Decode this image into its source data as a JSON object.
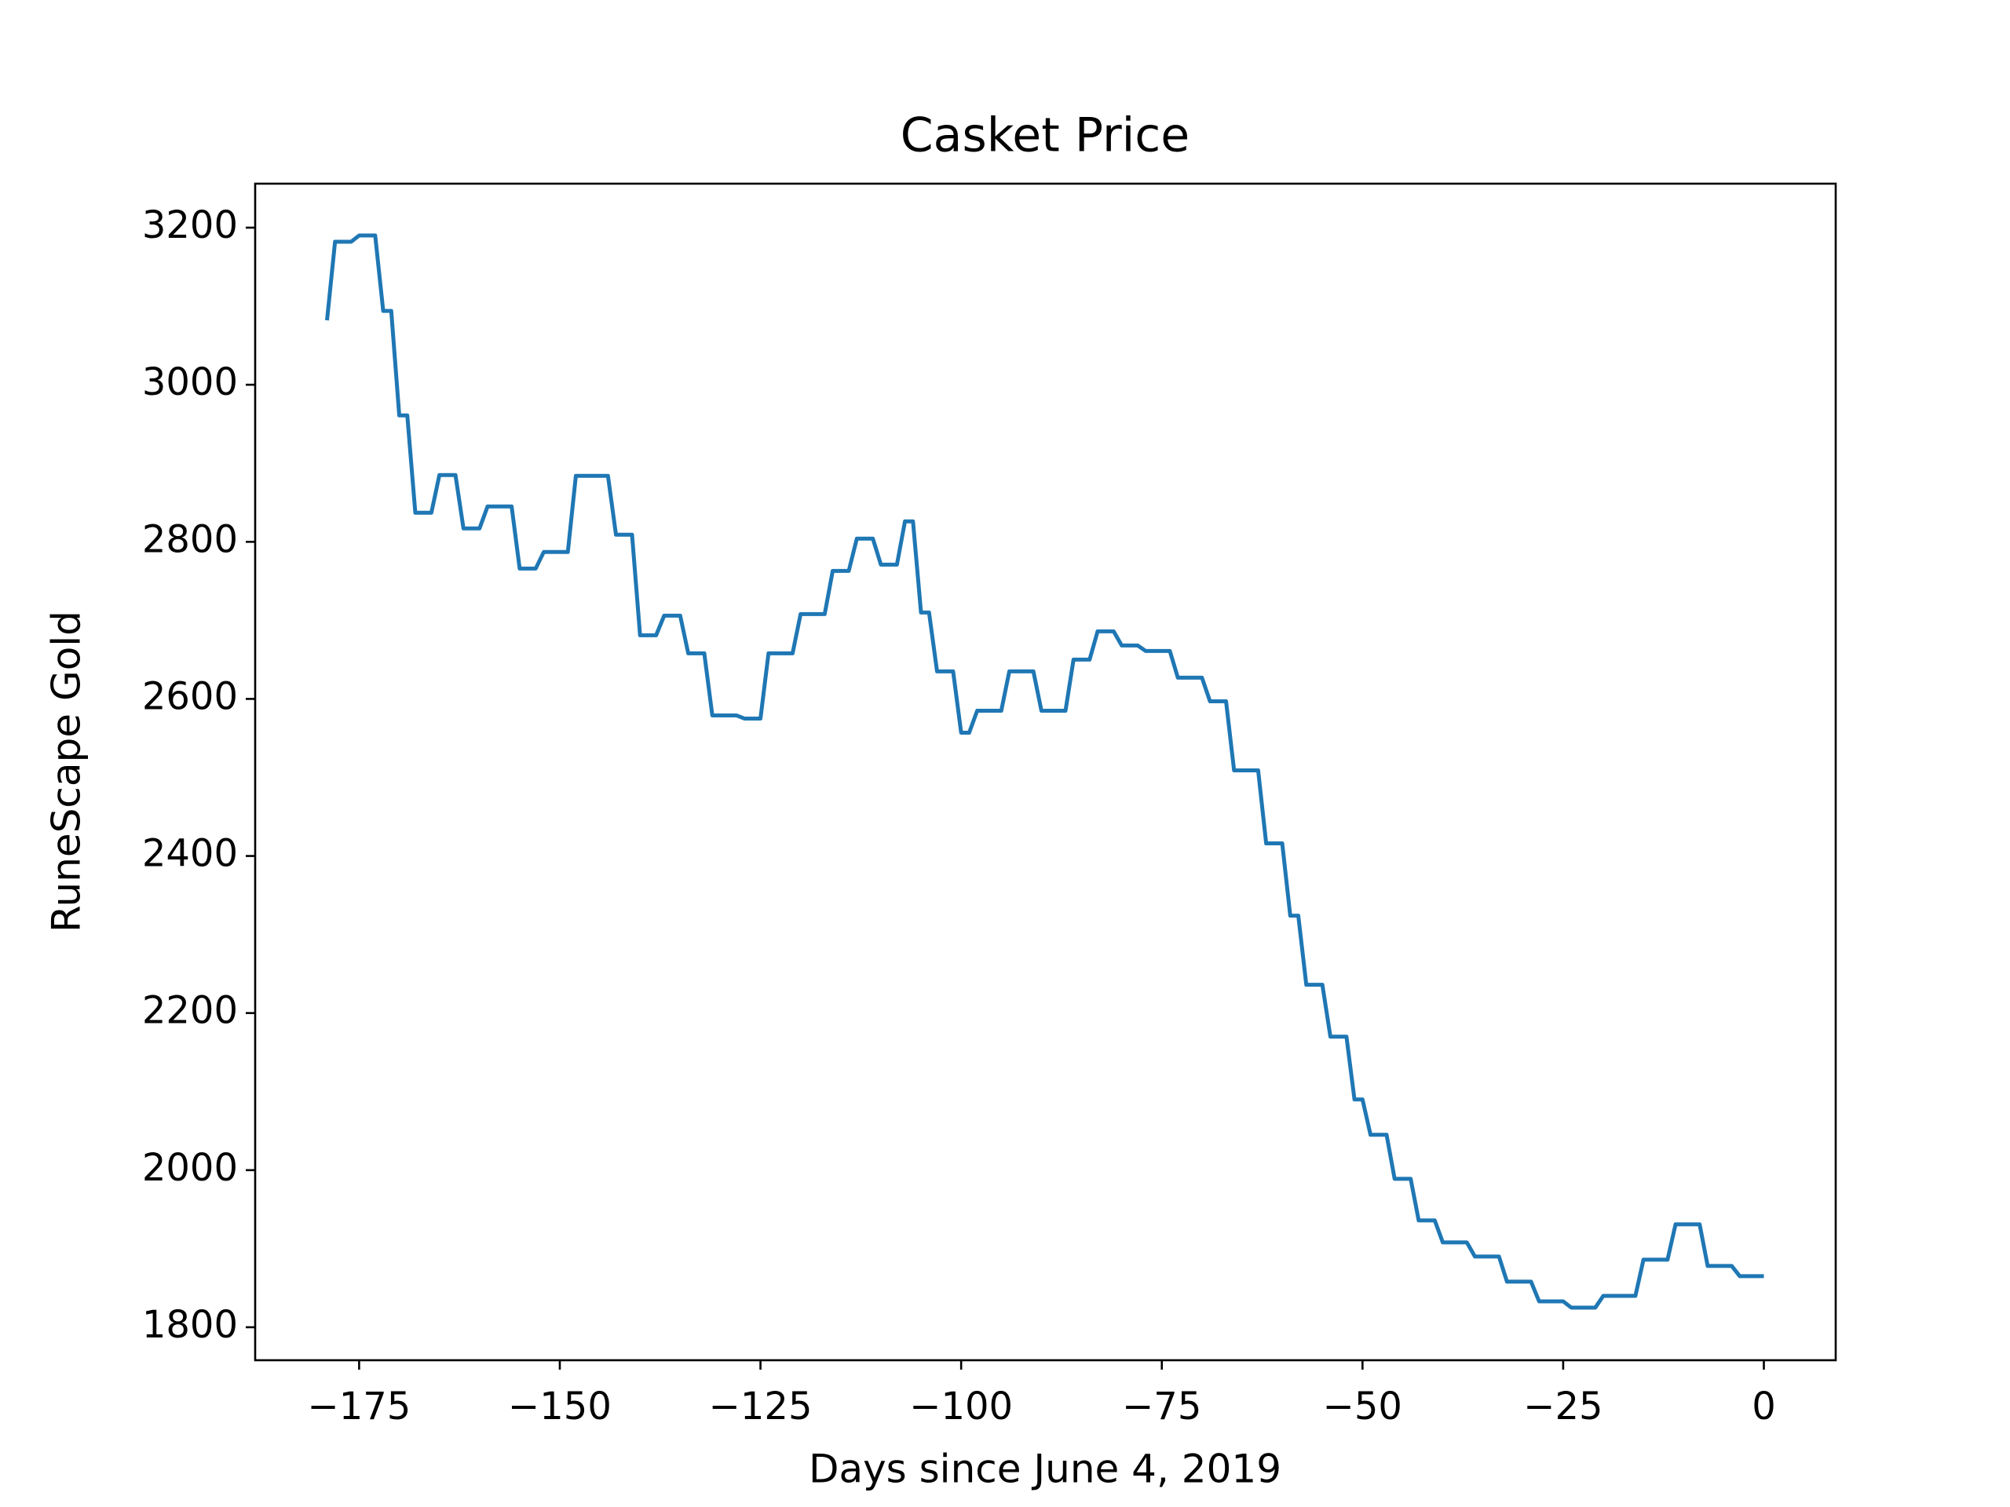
{
  "chart_data": {
    "type": "line",
    "title": "Casket Price",
    "x_label": "Days since June 4, 2019",
    "y_label": "RuneScape Gold",
    "x": [
      -179,
      -178,
      -176,
      -175,
      -173,
      -172,
      -171,
      -170,
      -169,
      -168,
      -166,
      -165,
      -163,
      -162,
      -160,
      -159,
      -156,
      -155,
      -153,
      -152,
      -149,
      -148,
      -144,
      -143,
      -141,
      -140,
      -138,
      -137,
      -135,
      -134,
      -132,
      -131,
      -128,
      -127,
      -125,
      -124,
      -121,
      -120,
      -117,
      -116,
      -114,
      -113,
      -111,
      -110,
      -108,
      -107,
      -106,
      -105,
      -104,
      -103,
      -101,
      -100,
      -99,
      -98,
      -95,
      -94,
      -91,
      -90,
      -87,
      -86,
      -84,
      -83,
      -81,
      -80,
      -78,
      -77,
      -74,
      -73,
      -70,
      -69,
      -67,
      -66,
      -63,
      -62,
      -60,
      -59,
      -58,
      -57,
      -55,
      -54,
      -52,
      -51,
      -50,
      -49,
      -47,
      -46,
      -44,
      -43,
      -41,
      -40,
      -37,
      -36,
      -33,
      -32,
      -29,
      -28,
      -25,
      -24,
      -21,
      -20,
      -16,
      -15,
      -12,
      -11,
      -8,
      -7,
      -4,
      -3,
      0
    ],
    "series": [
      {
        "name": "Casket Price",
        "color": "#1f77b4",
        "values": [
          3082,
          3182,
          3182,
          3190,
          3190,
          3094,
          3094,
          2961,
          2961,
          2837,
          2837,
          2885,
          2885,
          2817,
          2817,
          2845,
          2845,
          2766,
          2766,
          2787,
          2787,
          2884,
          2884,
          2809,
          2809,
          2681,
          2681,
          2706,
          2706,
          2658,
          2658,
          2579,
          2579,
          2575,
          2575,
          2658,
          2658,
          2708,
          2708,
          2763,
          2763,
          2804,
          2804,
          2771,
          2771,
          2826,
          2826,
          2710,
          2710,
          2635,
          2635,
          2557,
          2557,
          2585,
          2585,
          2635,
          2635,
          2585,
          2585,
          2650,
          2650,
          2686,
          2686,
          2668,
          2668,
          2661,
          2661,
          2627,
          2627,
          2597,
          2597,
          2509,
          2509,
          2416,
          2416,
          2324,
          2324,
          2236,
          2236,
          2170,
          2170,
          2090,
          2090,
          2045,
          2045,
          1989,
          1989,
          1936,
          1936,
          1908,
          1908,
          1890,
          1890,
          1858,
          1858,
          1833,
          1833,
          1825,
          1825,
          1840,
          1840,
          1886,
          1886,
          1931,
          1931,
          1878,
          1878,
          1865,
          1865
        ]
      }
    ],
    "xlim": [
      -187.95,
      8.95
    ],
    "ylim": [
      1758,
      3256
    ],
    "xticks": [
      {
        "value": -175,
        "label": "−175"
      },
      {
        "value": -150,
        "label": "−150"
      },
      {
        "value": -125,
        "label": "−125"
      },
      {
        "value": -100,
        "label": "−100"
      },
      {
        "value": -75,
        "label": "−75"
      },
      {
        "value": -50,
        "label": "−50"
      },
      {
        "value": -25,
        "label": "−25"
      },
      0
    ],
    "yticks": [
      1800,
      2000,
      2200,
      2400,
      2600,
      2800,
      3000,
      3200
    ]
  }
}
